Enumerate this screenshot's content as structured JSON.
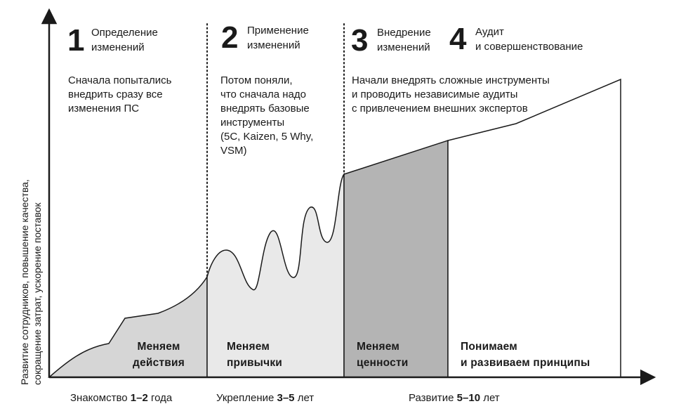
{
  "axis": {
    "y_label": [
      "Развитие сотрудников, повышение качества,",
      "сокращение затрат, ускорение поставок"
    ]
  },
  "stages": [
    {
      "number": "1",
      "title": [
        "Определение",
        "изменений"
      ],
      "description": [
        "Сначала попытались",
        "внедрить сразу все",
        "изменения ПС"
      ],
      "band_label": [
        "Меняем",
        "действия"
      ],
      "fill": "#d6d6d6"
    },
    {
      "number": "2",
      "title": [
        "Применение",
        "изменений"
      ],
      "description": [
        "Потом поняли,",
        "что сначала надо",
        "внедрять базовые",
        "инструменты",
        "(5С, Kaizen, 5 Why,",
        "VSM)"
      ],
      "band_label": [
        "Меняем",
        "привычки"
      ],
      "fill": "#e9e9e9"
    },
    {
      "number": "3",
      "title": [
        "Внедрение",
        "изменений"
      ],
      "description": [
        "Начали внедрять сложные инструменты",
        "и проводить независимые аудиты",
        "с привлечением внешних экспертов"
      ],
      "band_label": [
        "Меняем",
        "ценности"
      ],
      "fill": "#b4b4b4"
    },
    {
      "number": "4",
      "title": [
        "Аудит",
        "и совершенствование"
      ],
      "description": [],
      "band_label": [
        "Понимаем",
        "и развиваем принципы"
      ],
      "fill": "#ffffff"
    }
  ],
  "timeline": [
    {
      "prefix": "Знакомство ",
      "bold": "1–2",
      "suffix": " года"
    },
    {
      "prefix": "Укрепление ",
      "bold": "3–5",
      "suffix": " лет"
    },
    {
      "prefix": "Развитие ",
      "bold": "5–10",
      "suffix": " лет"
    }
  ],
  "colors": {
    "ink": "#1a1a1a",
    "axis": "#1a1a1a"
  }
}
